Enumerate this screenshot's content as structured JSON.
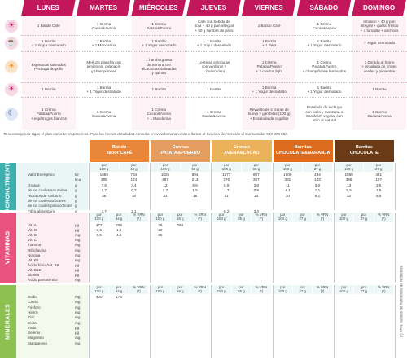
{
  "days": [
    "LUNES",
    "MARTES",
    "MIÉRCOLES",
    "JUEVES",
    "VIERNES",
    "SÁBADO",
    "DOMINGO"
  ],
  "meal_icons": [
    "sunrise-icon",
    "coffee-cup-icon",
    "sun-icon",
    "sunset-icon",
    "moon-icon"
  ],
  "meals": [
    [
      "1 Batido Café",
      "1 Crema\nCacao&Avena",
      "1 Crema\nPatata&Puerro",
      "Café con bebida de\nsoja + 40 g pan integral\n+ 50 g fiambre de pavo",
      "1 Batido Café",
      "1 Crema\nCacao&Avena",
      "Infusión + 40 g pan\nintegral + queso fresco\n+ 1 tomatito + anchoas"
    ],
    [
      "1 Barrita\n+ 1 Yogur desnatado",
      "1 Barrita\n+ 1 Mandarina",
      "1 Barrita\n+ 1 Yogur desnatado",
      "1 Barrita\n+ 1 Yogur desnatado",
      "1 Barrita\n+ 1 Pera",
      "1 Barrita\n+ 1 Yogur desnatado",
      "1 Yogur desnatado"
    ],
    [
      "Espinacas salteadas\nPechuga de pollo",
      "Merluza plancha con\npimientos, calabacín\ny champiñones",
      "1 hamburguesa\nde ternera con\nalcachofas salteadas\ny quinoa",
      "Lentejas estofadas\ncon verduras y\n1 huevo duro",
      "1 Crema\nPatata&Puerro\n+ 2 cuartos light",
      "1 Crema\nPatata&Puerro\n+ champiñones laminados",
      "1 Dorada al horno\n+ ensalada de brotes\nverdes y pimientos"
    ],
    [
      "1 Barrita",
      "1 Barrita\n+ 1 Yogur desnatado",
      "1 Barrita",
      "1 Barrita",
      "1 Barrita\n+ 1 Yogur desnatado",
      "1 Barrita\n+ 1 Yogur desnatado",
      "1 Barrita"
    ],
    [
      "1 Crema\nPatata&Puerro\n+ espárragos blancos",
      "1 Crema\nCacao&Avena",
      "1 Crema\nCacao&Avena\n+ 1 Mandarina",
      "1 Crema\nCacao&Avena",
      "Revuelto de 2 claras de\nhuevo y gambitas (100 g)\n+ Ensalada de cogollos",
      "Ensalada de lechuga\ncon pollo y manzana o\nSandwich vegetal con\natún al natural",
      "1 Crema\nCacao&Avena"
    ]
  ],
  "advice": "Te aconsejamos sigas el plan como te proponemos. Para los menús detallados consulta en www.bimanan.com o llamar al Servicio de Atención al Consumidor 900 373 550.",
  "products": [
    {
      "name": "Batido\nsabor CAFÉ",
      "color": "#e9863a"
    },
    {
      "name": "Cremas\nPATATA&PUERRO",
      "color": "#e59c5f"
    },
    {
      "name": "Cremas\nAVENA&CACAO",
      "color": "#e9b25b"
    },
    {
      "name": "Barritas\nCHOCOLATE&NARANJA",
      "color": "#dd6b1e"
    },
    {
      "name": "Barritas\nCHOCOLATE",
      "color": "#6b3a16"
    }
  ],
  "subheaders": {
    "macro": [
      [
        "por\n100 g",
        "por\n44 g"
      ],
      [
        "por\n100 g",
        "por\n55 g"
      ],
      [
        "por\n100 g",
        "por\n55 g"
      ],
      [
        "por\n100 g",
        "por\n27 g"
      ],
      [
        "por\n100 g",
        "por\n27 g"
      ]
    ],
    "vit": [
      [
        "por\n100 g",
        "por\n44 g",
        "% VRN\n(*)"
      ],
      [
        "por\n100 g",
        "por\n55 g",
        "% VRN\n(*)"
      ],
      [
        "por\n100 g",
        "por\n55 g",
        "% VRN\n(*)"
      ],
      [
        "por\n100 g",
        "por\n27 g",
        "% VRN\n(*)"
      ],
      [
        "por\n100 g",
        "por\n27 g",
        "% VRN\n(*)"
      ]
    ],
    "min": [
      [
        "por\n100 g",
        "por\n44 g",
        "% VRN\n(*)"
      ],
      [
        "por\n100 g",
        "por\n55 g",
        "% VRN\n(*)"
      ],
      [
        "por\n100 g",
        "por\n55 g",
        "% VRN\n(*)"
      ],
      [
        "por\n100 g",
        "por\n27 g",
        "% VRN\n(*)"
      ],
      [
        "por\n100 g",
        "por\n27 g",
        "% VRN\n(*)"
      ]
    ]
  },
  "sections": {
    "macro": {
      "label": "MACRONUTRIENTES",
      "color": "#3bb0ae",
      "rows": [
        {
          "name": "Valor Energético",
          "unit": "kJ",
          "v": [
            "1669",
            "734",
            "1626",
            "894",
            "1577",
            "867",
            "1609",
            "434",
            "1669",
            "451"
          ]
        },
        {
          "name": "",
          "unit": "kcal",
          "v": [
            "395",
            "174",
            "387",
            "213",
            "376",
            "207",
            "381",
            "103",
            "395",
            "107"
          ]
        },
        {
          "name": "Grasas",
          "unit": "g",
          "v": [
            "7,8",
            "3,4",
            "12",
            "6,6",
            "6,9",
            "3,8",
            "11",
            "3,0",
            "13",
            "3,5"
          ]
        },
        {
          "name": "de los cuales saturadas",
          "unit": "g",
          "v": [
            "1,7",
            "0,7",
            "2,7",
            "1,5",
            "1,7",
            "0,9",
            "4,1",
            "1,1",
            "5,5",
            "1,5"
          ]
        },
        {
          "name": "Hidratos de carbono",
          "unit": "g",
          "v": [
            "36",
            "16",
            "32",
            "18",
            "41",
            "23",
            "30",
            "8,1",
            "32",
            "8,6"
          ]
        },
        {
          "name": "de los cuales azúcares",
          "unit": "g",
          "v": [
            "",
            "",
            "",
            "",
            "",
            "",
            "",
            "",
            "",
            ""
          ]
        },
        {
          "name": "de los cuales polialcoholes",
          "unit": "g",
          "v": [
            "",
            "",
            "",
            "",
            "",
            "",
            "",
            "",
            "",
            ""
          ]
        },
        {
          "name": "Fibra alimentaria",
          "unit": "g",
          "v": [
            "4,7",
            "2,1",
            "",
            "",
            "6,2",
            "3,4",
            "",
            "",
            "",
            ""
          ]
        },
        {
          "name": "Proteínas",
          "unit": "g",
          "v": [
            "36",
            "16",
            "",
            "",
            "",
            "",
            "30",
            "8,1",
            "32",
            "8,6"
          ]
        },
        {
          "name": "Sal",
          "unit": "g",
          "v": [
            "",
            "",
            "",
            "",
            "",
            "",
            "",
            "",
            "",
            ""
          ]
        }
      ]
    },
    "vit": {
      "label": "VITAMINAS",
      "color": "#e8537e",
      "rows": [
        {
          "name": "Vit. A",
          "unit": "µg",
          "v": [
            "472",
            "208",
            "26",
            "250",
            "",
            "",
            "",
            "",
            "",
            ""
          ]
        },
        {
          "name": "Vit. D",
          "unit": "µg",
          "v": [
            "3,6",
            "1,6",
            "32",
            "",
            "",
            "",
            "",
            "",
            "",
            ""
          ]
        },
        {
          "name": "Vit. E",
          "unit": "mg",
          "v": [
            "9,5",
            "4,2",
            "35",
            "",
            "",
            "",
            "",
            "",
            "",
            ""
          ]
        },
        {
          "name": "Vit. C",
          "unit": "mg",
          "v": [
            "",
            "",
            "",
            "",
            "",
            "",
            "",
            "",
            "",
            ""
          ]
        },
        {
          "name": "Tiamina",
          "unit": "mg",
          "v": [
            "",
            "",
            "",
            "",
            "",
            "",
            "",
            "",
            "",
            ""
          ]
        },
        {
          "name": "Riboflavina",
          "unit": "mg",
          "v": [
            "",
            "",
            "",
            "",
            "",
            "",
            "",
            "",
            "",
            ""
          ]
        },
        {
          "name": "Niacina",
          "unit": "mg",
          "v": [
            "",
            "",
            "",
            "",
            "",
            "",
            "",
            "",
            "",
            ""
          ]
        },
        {
          "name": "Vit. B6",
          "unit": "mg",
          "v": [
            "",
            "",
            "",
            "",
            "",
            "",
            "",
            "",
            "",
            ""
          ]
        },
        {
          "name": "Ácido fólico/Vit. B9",
          "unit": "µg",
          "v": [
            "",
            "",
            "",
            "",
            "",
            "",
            "",
            "",
            "",
            ""
          ]
        },
        {
          "name": "Vit. B12",
          "unit": "µg",
          "v": [
            "",
            "",
            "",
            "",
            "",
            "",
            "",
            "",
            "",
            ""
          ]
        },
        {
          "name": "Biotina",
          "unit": "µg",
          "v": [
            "",
            "",
            "",
            "",
            "",
            "",
            "",
            "",
            "",
            ""
          ]
        },
        {
          "name": "Ácido pantoténico",
          "unit": "mg",
          "v": [
            "",
            "",
            "",
            "",
            "",
            "",
            "",
            "",
            "",
            ""
          ]
        }
      ]
    },
    "min": {
      "label": "MINERALES",
      "color": "#8cc152",
      "rows": [
        {
          "name": "Sodio",
          "unit": "mg",
          "v": [
            "400",
            "176",
            "",
            "",
            "",
            "",
            "",
            "",
            "",
            ""
          ]
        },
        {
          "name": "Calcio",
          "unit": "mg",
          "v": [
            "",
            "",
            "",
            "",
            "",
            "",
            "",
            "",
            "",
            ""
          ]
        },
        {
          "name": "Fósforo",
          "unit": "mg",
          "v": [
            "",
            "",
            "",
            "",
            "",
            "",
            "",
            "",
            "",
            ""
          ]
        },
        {
          "name": "Hierro",
          "unit": "mg",
          "v": [
            "",
            "",
            "",
            "",
            "",
            "",
            "",
            "",
            "",
            ""
          ]
        },
        {
          "name": "Zinc",
          "unit": "mg",
          "v": [
            "",
            "",
            "",
            "",
            "",
            "",
            "",
            "",
            "",
            ""
          ]
        },
        {
          "name": "Cobre",
          "unit": "mg",
          "v": [
            "",
            "",
            "",
            "",
            "",
            "",
            "",
            "",
            "",
            ""
          ]
        },
        {
          "name": "Yodo",
          "unit": "µg",
          "v": [
            "",
            "",
            "",
            "",
            "",
            "",
            "",
            "",
            "",
            ""
          ]
        },
        {
          "name": "Selenio",
          "unit": "µg",
          "v": [
            "",
            "",
            "",
            "",
            "",
            "",
            "",
            "",
            "",
            ""
          ]
        },
        {
          "name": "Magnesio",
          "unit": "mg",
          "v": [
            "",
            "",
            "",
            "",
            "",
            "",
            "",
            "",
            "",
            ""
          ]
        },
        {
          "name": "Manganeso",
          "unit": "mg",
          "v": [
            "",
            "",
            "",
            "",
            "",
            "",
            "",
            "",
            "",
            ""
          ]
        }
      ]
    }
  },
  "footnote": "(*) VRN: Valores de Referencia de Nutrientes"
}
